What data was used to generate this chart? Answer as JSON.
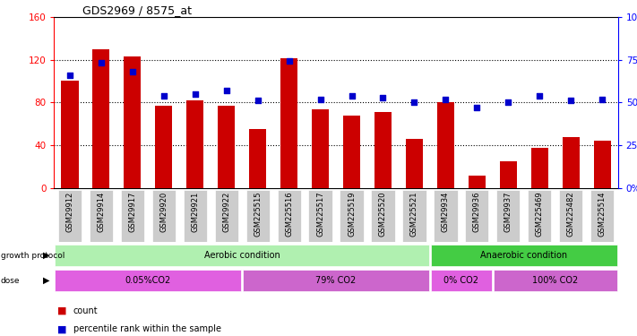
{
  "title": "GDS2969 / 8575_at",
  "sample_labels": [
    "GSM29912",
    "GSM29914",
    "GSM29917",
    "GSM29920",
    "GSM29921",
    "GSM29922",
    "GSM225515",
    "GSM225516",
    "GSM225517",
    "GSM225519",
    "GSM225520",
    "GSM225521",
    "GSM29934",
    "GSM29936",
    "GSM29937",
    "GSM225469",
    "GSM225482",
    "GSM225514"
  ],
  "count_values": [
    100,
    130,
    123,
    77,
    82,
    77,
    55,
    121,
    74,
    68,
    71,
    46,
    80,
    12,
    25,
    38,
    48,
    44
  ],
  "percentile_values": [
    66,
    73,
    68,
    54,
    55,
    57,
    51,
    74,
    52,
    54,
    53,
    50,
    52,
    47,
    50,
    54,
    51,
    52
  ],
  "bar_color": "#cc0000",
  "dot_color": "#0000cc",
  "left_ylim": [
    0,
    160
  ],
  "right_ylim": [
    0,
    100
  ],
  "left_yticks": [
    0,
    40,
    80,
    120,
    160
  ],
  "right_yticks": [
    0,
    25,
    50,
    75,
    100
  ],
  "right_yticklabels": [
    "0%",
    "25%",
    "50%",
    "75%",
    "100%"
  ],
  "hgrid_vals": [
    40,
    80,
    120
  ],
  "growth_protocol_groups": [
    {
      "label": "Aerobic condition",
      "start": 0,
      "end": 11,
      "color": "#b0f0b0"
    },
    {
      "label": "Anaerobic condition",
      "start": 12,
      "end": 17,
      "color": "#44cc44"
    }
  ],
  "dose_groups": [
    {
      "label": "0.05%CO2",
      "start": 0,
      "end": 5,
      "color": "#e060e0"
    },
    {
      "label": "79% CO2",
      "start": 6,
      "end": 11,
      "color": "#cc66cc"
    },
    {
      "label": "0% CO2",
      "start": 12,
      "end": 13,
      "color": "#e060e0"
    },
    {
      "label": "100% CO2",
      "start": 14,
      "end": 17,
      "color": "#cc66cc"
    }
  ],
  "bg_color": "#ffffff",
  "tick_bg_color": "#cccccc"
}
